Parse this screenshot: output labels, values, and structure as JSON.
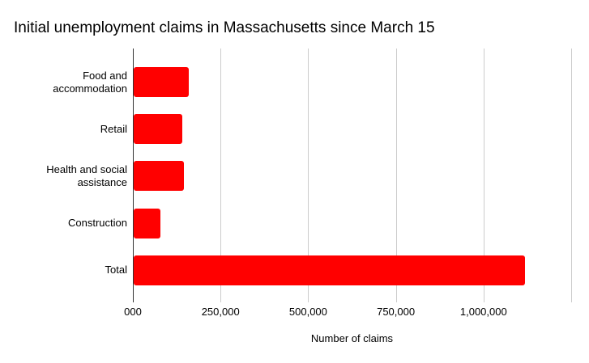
{
  "page": {
    "background_color": "#ffffff"
  },
  "chart_data": {
    "type": "bar",
    "orientation": "horizontal",
    "title": "Initial unemployment claims in Massachusetts since March 15",
    "xlabel": "Number of claims",
    "ylabel": "",
    "categories": [
      "Food and accommodation",
      "Retail",
      "Health and social assistance",
      "Construction",
      "Total"
    ],
    "values": [
      157000,
      139000,
      144000,
      76000,
      1115000
    ],
    "xlim": [
      0,
      1250000
    ],
    "x_ticks": [
      {
        "value": 0,
        "label": "000"
      },
      {
        "value": 250000,
        "label": "250,000"
      },
      {
        "value": 500000,
        "label": "500,000"
      },
      {
        "value": 750000,
        "label": "750,000"
      },
      {
        "value": 1000000,
        "label": "1,000,000"
      },
      {
        "value": 1250000,
        "label": ""
      }
    ],
    "bar_color": "#ff0000",
    "gridline_color": "#cccccc",
    "axis_line_color": "#333333",
    "text_color": "#000000",
    "grid": true,
    "legend": false
  }
}
